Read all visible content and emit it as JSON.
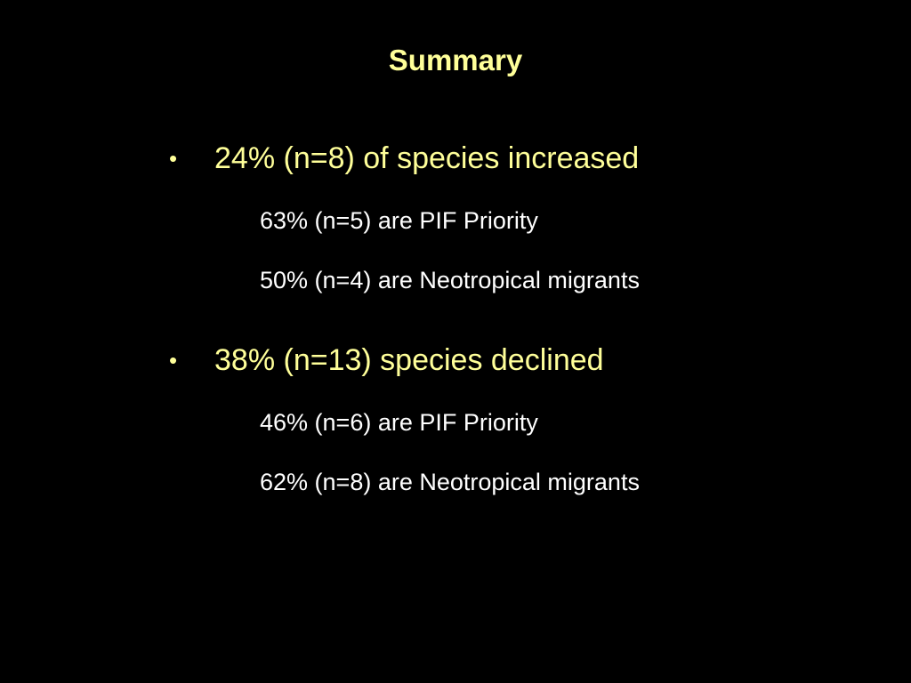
{
  "slide": {
    "title": "Summary",
    "colors": {
      "background": "#000000",
      "title": "#ffff99",
      "bullet": "#ffff99",
      "sub": "#ffffff"
    },
    "bullets": [
      {
        "marker": "•",
        "text": "24% (n=8) of species increased",
        "subitems": [
          "63% (n=5) are PIF Priority",
          "50% (n=4) are Neotropical migrants"
        ]
      },
      {
        "marker": "•",
        "text": "38% (n=13) species declined",
        "subitems": [
          "46% (n=6) are PIF Priority",
          "62% (n=8) are Neotropical migrants"
        ]
      }
    ]
  }
}
